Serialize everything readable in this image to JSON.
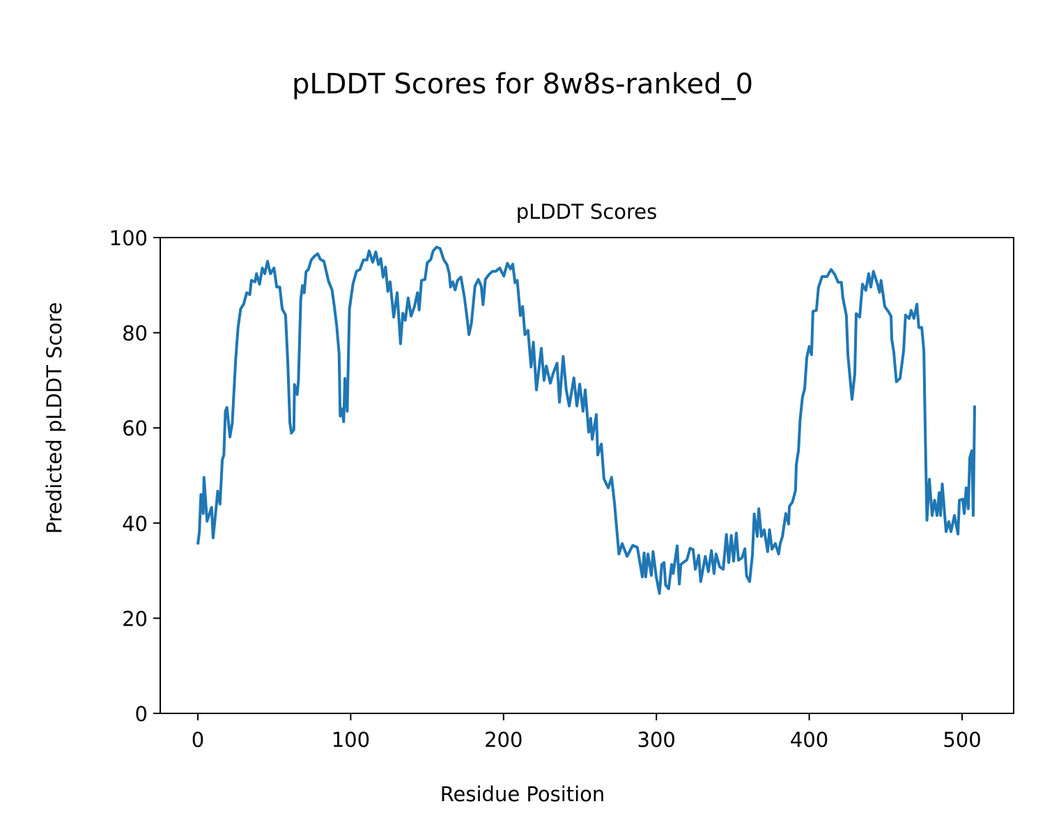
{
  "chart_data": {
    "type": "line",
    "suptitle": "pLDDT Scores for 8w8s-ranked_0",
    "title": "pLDDT Scores",
    "xlabel": "Residue Position",
    "ylabel": "Predicted pLDDT Score",
    "xlim": [
      -25,
      534
    ],
    "ylim": [
      0,
      100
    ],
    "xticks": [
      0,
      100,
      200,
      300,
      400,
      500
    ],
    "yticks": [
      0,
      20,
      40,
      60,
      80,
      100
    ],
    "xtick_labels": [
      "0",
      "100",
      "200",
      "300",
      "400",
      "500"
    ],
    "ytick_labels": [
      "0",
      "20",
      "40",
      "60",
      "80",
      "100"
    ],
    "grid": false,
    "series": [
      {
        "name": "pLDDT",
        "color": "#1f77b4",
        "points": [
          [
            0,
            35.5
          ],
          [
            1,
            38.2
          ],
          [
            2,
            46
          ],
          [
            3.5,
            42
          ],
          [
            4,
            49.6
          ],
          [
            6,
            40.4
          ],
          [
            9,
            43.3
          ],
          [
            10,
            36.9
          ],
          [
            12,
            43.3
          ],
          [
            13,
            46.7
          ],
          [
            14.5,
            44
          ],
          [
            16,
            53.3
          ],
          [
            17,
            54.3
          ],
          [
            18,
            63.5
          ],
          [
            19,
            64.3
          ],
          [
            21,
            58.1
          ],
          [
            22.5,
            61
          ],
          [
            24.7,
            74.2
          ],
          [
            26.3,
            81.1
          ],
          [
            28,
            85
          ],
          [
            30,
            86
          ],
          [
            32,
            88.4
          ],
          [
            34,
            88
          ],
          [
            35,
            91
          ],
          [
            37.4,
            90.7
          ],
          [
            38.4,
            92.4
          ],
          [
            40.4,
            90.2
          ],
          [
            42.2,
            93.6
          ],
          [
            43.8,
            92.4
          ],
          [
            45.6,
            95
          ],
          [
            47.5,
            92.4
          ],
          [
            49.8,
            93.6
          ],
          [
            51.6,
            89.6
          ],
          [
            53.6,
            89.6
          ],
          [
            55.2,
            85
          ],
          [
            57.4,
            83.7
          ],
          [
            58.9,
            73.4
          ],
          [
            60.2,
            61.1
          ],
          [
            61.2,
            58.9
          ],
          [
            62.8,
            59.6
          ],
          [
            63.2,
            69.1
          ],
          [
            65,
            67
          ],
          [
            65.8,
            70
          ],
          [
            67.3,
            87
          ],
          [
            68.4,
            89.9
          ],
          [
            69.6,
            88.4
          ],
          [
            70.8,
            92.8
          ],
          [
            72.3,
            93.3
          ],
          [
            74.2,
            95.3
          ],
          [
            76.4,
            96.1
          ],
          [
            78.4,
            96.6
          ],
          [
            80.2,
            95.4
          ],
          [
            82.5,
            95
          ],
          [
            84,
            92.9
          ],
          [
            85.5,
            90.8
          ],
          [
            87.8,
            89
          ],
          [
            89.3,
            85.5
          ],
          [
            90.8,
            81.6
          ],
          [
            92.4,
            75.7
          ],
          [
            93.1,
            62.5
          ],
          [
            94.3,
            64
          ],
          [
            95.4,
            61.3
          ],
          [
            96.2,
            70.4
          ],
          [
            97.7,
            63.5
          ],
          [
            99.2,
            85
          ],
          [
            101.5,
            90.3
          ],
          [
            103.8,
            92.9
          ],
          [
            106,
            93.3
          ],
          [
            108.3,
            95.3
          ],
          [
            110.6,
            95.3
          ],
          [
            112.1,
            97.2
          ],
          [
            114.4,
            94.8
          ],
          [
            116.4,
            97
          ],
          [
            118.2,
            94.3
          ],
          [
            119.7,
            95.6
          ],
          [
            121.2,
            91.7
          ],
          [
            122.8,
            93.8
          ],
          [
            124.3,
            88.7
          ],
          [
            125.8,
            90.7
          ],
          [
            128.1,
            83.3
          ],
          [
            130.4,
            88.4
          ],
          [
            132.6,
            77.7
          ],
          [
            134.1,
            84.1
          ],
          [
            135.7,
            82.6
          ],
          [
            137.6,
            87.3
          ],
          [
            139.5,
            83.5
          ],
          [
            141.7,
            85.5
          ],
          [
            143.7,
            88.4
          ],
          [
            144.8,
            84.8
          ],
          [
            146.3,
            91
          ],
          [
            148.6,
            91.2
          ],
          [
            150.1,
            94.7
          ],
          [
            152.4,
            95.4
          ],
          [
            153.9,
            97.2
          ],
          [
            156.2,
            98
          ],
          [
            158.5,
            97.7
          ],
          [
            160.8,
            95.4
          ],
          [
            163,
            94.3
          ],
          [
            164.5,
            92.4
          ],
          [
            165.3,
            89.6
          ],
          [
            166.8,
            90.7
          ],
          [
            168.3,
            89
          ],
          [
            169.9,
            91
          ],
          [
            172.1,
            91.7
          ],
          [
            174.4,
            87.5
          ],
          [
            175.9,
            83.7
          ],
          [
            177.4,
            79.6
          ],
          [
            179,
            82
          ],
          [
            181.3,
            89.8
          ],
          [
            183.5,
            91.2
          ],
          [
            185.4,
            89.8
          ],
          [
            186.6,
            85.9
          ],
          [
            188.1,
            91.2
          ],
          [
            190.4,
            92.2
          ],
          [
            192.7,
            92.9
          ],
          [
            194.9,
            92.9
          ],
          [
            197.5,
            93.6
          ],
          [
            200.2,
            91.9
          ],
          [
            202.5,
            94.6
          ],
          [
            204.5,
            93.4
          ],
          [
            206,
            94.4
          ],
          [
            207.5,
            90.5
          ],
          [
            209,
            91
          ],
          [
            211,
            83.6
          ],
          [
            212.5,
            85.5
          ],
          [
            214,
            79.6
          ],
          [
            216,
            80.5
          ],
          [
            218,
            72.8
          ],
          [
            219.5,
            78
          ],
          [
            221.5,
            68
          ],
          [
            223,
            72
          ],
          [
            224.7,
            76.7
          ],
          [
            226.5,
            70
          ],
          [
            228,
            73
          ],
          [
            230.6,
            69.4
          ],
          [
            232.5,
            71.5
          ],
          [
            235,
            73.6
          ],
          [
            236.6,
            65.4
          ],
          [
            239,
            75
          ],
          [
            241,
            68
          ],
          [
            243,
            64.6
          ],
          [
            246,
            70.5
          ],
          [
            248,
            64.6
          ],
          [
            249.8,
            69.2
          ],
          [
            252,
            63.5
          ],
          [
            253.4,
            68
          ],
          [
            255.7,
            59.1
          ],
          [
            257,
            62
          ],
          [
            258,
            57.6
          ],
          [
            260.7,
            62.8
          ],
          [
            261.6,
            54.3
          ],
          [
            264,
            56.6
          ],
          [
            265.7,
            49.3
          ],
          [
            268.5,
            47.4
          ],
          [
            270.7,
            49.6
          ],
          [
            272.6,
            44.1
          ],
          [
            275.5,
            33.5
          ],
          [
            277.6,
            35.7
          ],
          [
            280.8,
            33
          ],
          [
            284.5,
            35.3
          ],
          [
            287.5,
            34.9
          ],
          [
            290.8,
            28.7
          ],
          [
            292,
            33.7
          ],
          [
            293,
            28.7
          ],
          [
            294.5,
            33.5
          ],
          [
            296.7,
            29
          ],
          [
            297.8,
            34
          ],
          [
            299.9,
            28.7
          ],
          [
            302,
            25.2
          ],
          [
            303.5,
            31.3
          ],
          [
            305,
            31.7
          ],
          [
            306,
            27
          ],
          [
            308,
            26.2
          ],
          [
            310,
            31.3
          ],
          [
            311,
            29.4
          ],
          [
            313.6,
            35.2
          ],
          [
            315,
            27.2
          ],
          [
            316,
            31.3
          ],
          [
            320,
            32.3
          ],
          [
            322,
            34.7
          ],
          [
            324,
            34.4
          ],
          [
            325.5,
            30.3
          ],
          [
            327.7,
            33.2
          ],
          [
            329,
            27.7
          ],
          [
            332,
            33
          ],
          [
            334,
            29.8
          ],
          [
            336,
            34.2
          ],
          [
            337.7,
            29.4
          ],
          [
            339,
            33.5
          ],
          [
            341.4,
            30.8
          ],
          [
            343.7,
            30.3
          ],
          [
            345.8,
            37.6
          ],
          [
            347.3,
            31.7
          ],
          [
            349,
            37.4
          ],
          [
            350.5,
            32
          ],
          [
            352.3,
            37.9
          ],
          [
            353.7,
            32.2
          ],
          [
            356,
            32.7
          ],
          [
            357.9,
            34.6
          ],
          [
            359,
            28.9
          ],
          [
            361,
            27.7
          ],
          [
            362.8,
            33.2
          ],
          [
            364,
            41.9
          ],
          [
            366,
            37.2
          ],
          [
            367,
            43
          ],
          [
            368.7,
            37.2
          ],
          [
            370.5,
            38.6
          ],
          [
            372.8,
            34
          ],
          [
            374,
            38.6
          ],
          [
            375.6,
            34.5
          ],
          [
            377.8,
            35.7
          ],
          [
            380,
            33.5
          ],
          [
            381,
            35.7
          ],
          [
            382.4,
            37.1
          ],
          [
            384.7,
            42
          ],
          [
            386.5,
            39.8
          ],
          [
            387,
            43.5
          ],
          [
            389,
            44.4
          ],
          [
            391,
            46.9
          ],
          [
            391.5,
            52.3
          ],
          [
            393,
            55.3
          ],
          [
            394,
            61.6
          ],
          [
            395.6,
            66.5
          ],
          [
            397,
            68.2
          ],
          [
            398.4,
            74.8
          ],
          [
            400,
            77.1
          ],
          [
            401.5,
            75.4
          ],
          [
            402.4,
            84.5
          ],
          [
            404.7,
            84.7
          ],
          [
            406,
            89.5
          ],
          [
            408.4,
            91.8
          ],
          [
            411.6,
            91.8
          ],
          [
            414.3,
            93.3
          ],
          [
            416.6,
            92.3
          ],
          [
            418.9,
            90.6
          ],
          [
            421,
            90.6
          ],
          [
            422,
            87.3
          ],
          [
            424.3,
            83.6
          ],
          [
            425.3,
            75.3
          ],
          [
            428,
            66
          ],
          [
            429.8,
            71.4
          ],
          [
            430.7,
            84
          ],
          [
            433,
            83.3
          ],
          [
            434.8,
            90.2
          ],
          [
            437,
            88.9
          ],
          [
            438.9,
            92.4
          ],
          [
            440.3,
            89.6
          ],
          [
            442,
            92.9
          ],
          [
            444.8,
            90
          ],
          [
            446,
            88.5
          ],
          [
            447,
            91
          ],
          [
            449.4,
            85.5
          ],
          [
            451.7,
            84.5
          ],
          [
            453.5,
            83.5
          ],
          [
            454,
            78.6
          ],
          [
            455.3,
            76
          ],
          [
            457,
            69.7
          ],
          [
            459.4,
            70.4
          ],
          [
            461.7,
            76.1
          ],
          [
            463,
            83.7
          ],
          [
            465.4,
            83
          ],
          [
            466.7,
            84.7
          ],
          [
            468.5,
            83
          ],
          [
            470.4,
            86
          ],
          [
            471.7,
            81.1
          ],
          [
            473.6,
            81.1
          ],
          [
            475,
            76.3
          ],
          [
            476,
            57.7
          ],
          [
            477,
            40.6
          ],
          [
            478.6,
            49.2
          ],
          [
            480.4,
            41.6
          ],
          [
            482,
            44.8
          ],
          [
            483.6,
            41.6
          ],
          [
            485,
            46.4
          ],
          [
            485.9,
            41.6
          ],
          [
            487,
            48.2
          ],
          [
            489.5,
            38.2
          ],
          [
            491.3,
            40.3
          ],
          [
            492.7,
            38.2
          ],
          [
            495,
            41.6
          ],
          [
            497.3,
            37.7
          ],
          [
            498.2,
            44.8
          ],
          [
            500.4,
            45
          ],
          [
            501.4,
            42
          ],
          [
            502.7,
            47.4
          ],
          [
            504,
            43
          ],
          [
            505,
            53.7
          ],
          [
            506.4,
            55.2
          ],
          [
            507.3,
            41.6
          ],
          [
            508.2,
            64.7
          ]
        ]
      }
    ]
  }
}
